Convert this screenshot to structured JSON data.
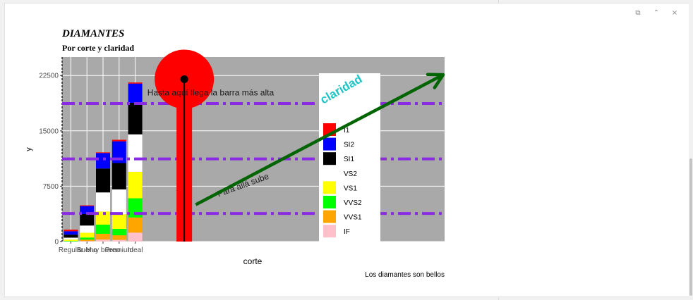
{
  "viewer": {
    "tools": [
      {
        "icon": "copy-icon",
        "glyph": "⧉"
      },
      {
        "icon": "collapse-icon",
        "glyph": "⌃"
      },
      {
        "icon": "close-icon",
        "glyph": "×"
      }
    ]
  },
  "chart_data": {
    "type": "bar",
    "title": "DIAMANTES",
    "subtitle": "Por corte y claridad",
    "xlabel": "corte",
    "ylabel": "y",
    "caption": "Los diamantes son bellos",
    "categories": [
      "Regular",
      "Bueno",
      "Muy bueno",
      "Premium",
      "Ideal"
    ],
    "ylim": [
      0,
      25000
    ],
    "yticks": [
      0,
      7500,
      15000,
      22500
    ],
    "ytick_labels": [
      "0",
      "7500",
      "15000",
      "22500"
    ],
    "panel_background": "#a9a9a9",
    "legend_title": "claridad",
    "legend_title_color": "#20c4c4",
    "series": [
      {
        "name": "IF",
        "color": "#ffc0cb",
        "values": [
          9,
          71,
          268,
          230,
          1212
        ]
      },
      {
        "name": "VVS1",
        "color": "#ffa500",
        "values": [
          17,
          186,
          789,
          616,
          2047
        ]
      },
      {
        "name": "VVS2",
        "color": "#00ff00",
        "values": [
          69,
          286,
          1235,
          870,
          2606
        ]
      },
      {
        "name": "VS1",
        "color": "#ffff00",
        "values": [
          170,
          648,
          1775,
          1989,
          3589
        ]
      },
      {
        "name": "VS2",
        "color": "#ffffff",
        "values": [
          261,
          978,
          2591,
          3357,
          5071
        ]
      },
      {
        "name": "SI1",
        "color": "#000000",
        "values": [
          408,
          1560,
          3240,
          3575,
          4282
        ]
      },
      {
        "name": "SI2",
        "color": "#0000ff",
        "values": [
          466,
          1081,
          2100,
          2949,
          2598
        ]
      },
      {
        "name": "I1",
        "color": "#ff0000",
        "values": [
          210,
          96,
          84,
          205,
          146
        ]
      }
    ],
    "legend_order": [
      "I1",
      "SI2",
      "SI1",
      "VS2",
      "VS1",
      "VVS2",
      "VVS1",
      "IF"
    ],
    "hlines": [
      {
        "y": 3800,
        "color": "#8a2be2",
        "style": "dashdot"
      },
      {
        "y": 11200,
        "color": "#8a2be2",
        "style": "dashdot"
      },
      {
        "y": 18700,
        "color": "#8a2be2",
        "style": "dashdot"
      }
    ],
    "annotations": [
      {
        "text": "Hasta aquí llega la barra más alta",
        "x": 10.5,
        "y": 19800
      },
      {
        "text": "Para allá sube",
        "x": 6.2,
        "y": 7000,
        "rotation": -20
      }
    ],
    "arrow": {
      "x0": 5.3,
      "y0": 5000,
      "x1": 13.1,
      "y1": 22600,
      "color": "#006400"
    },
    "lollipop": {
      "x": 15.1,
      "y": 22000,
      "color": "#ff0000",
      "stem_color": "#000000"
    }
  }
}
